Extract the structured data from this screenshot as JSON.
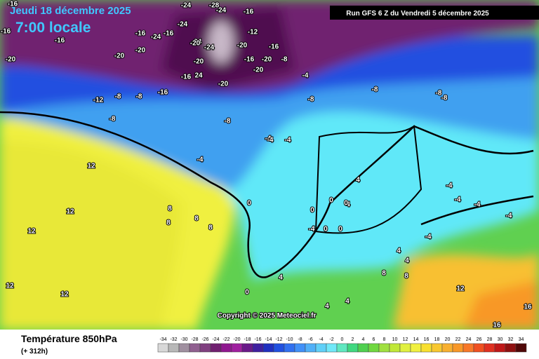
{
  "header": {
    "date": "Jeudi 18 décembre 2025",
    "time": "7:00 locale",
    "run": "Run GFS 6 Z du Vendredi 5 décembre 2025"
  },
  "copyright": "Copyright © 2025 Meteociel.fr",
  "footer": {
    "title": "Température 850hPa",
    "lead": "(+ 312h)"
  },
  "scale": {
    "values": [
      -34,
      -32,
      -30,
      -28,
      -26,
      -24,
      -22,
      -20,
      -18,
      -16,
      -14,
      -12,
      -10,
      -8,
      -6,
      -4,
      -2,
      0,
      2,
      4,
      6,
      8,
      10,
      12,
      14,
      16,
      18,
      20,
      22,
      24,
      26,
      28,
      30,
      32,
      34
    ],
    "colors": [
      "#d8d8d8",
      "#b8b8b8",
      "#a090a0",
      "#906090",
      "#804080",
      "#702070",
      "#901890",
      "#a020a0",
      "#6a1a8a",
      "#4020a0",
      "#2030c0",
      "#2050e0",
      "#3070f0",
      "#4090f8",
      "#50b0f8",
      "#60d0f8",
      "#70e8f8",
      "#60e8c0",
      "#40d880",
      "#50d050",
      "#70d840",
      "#a0e040",
      "#c0e838",
      "#e0f040",
      "#f0f040",
      "#f8e030",
      "#f8c830",
      "#f8b030",
      "#f89828",
      "#f87828",
      "#f05020",
      "#e03020",
      "#c01818",
      "#901010",
      "#500808"
    ]
  },
  "map_labels": [
    -16,
    -24,
    -28,
    -24,
    -16,
    -24,
    -16,
    -16,
    -24,
    -20,
    -16,
    -16,
    -20,
    -20,
    -24,
    -20,
    -12,
    -20,
    -16,
    -8,
    -20,
    -16,
    -20,
    -24,
    -20,
    24,
    -20,
    -16,
    -12,
    -8,
    -8,
    -16,
    -4,
    -4,
    -8,
    -8,
    -8,
    -8,
    -8,
    -8,
    -4,
    -4,
    -4,
    12,
    12,
    12,
    12,
    12,
    8,
    8,
    8,
    8,
    0,
    0,
    0,
    4,
    4,
    0,
    0,
    -4,
    0,
    -4,
    -4,
    -4,
    -4,
    -4,
    4,
    4,
    4,
    4,
    8,
    8,
    12,
    16,
    16,
    0,
    4
  ]
}
